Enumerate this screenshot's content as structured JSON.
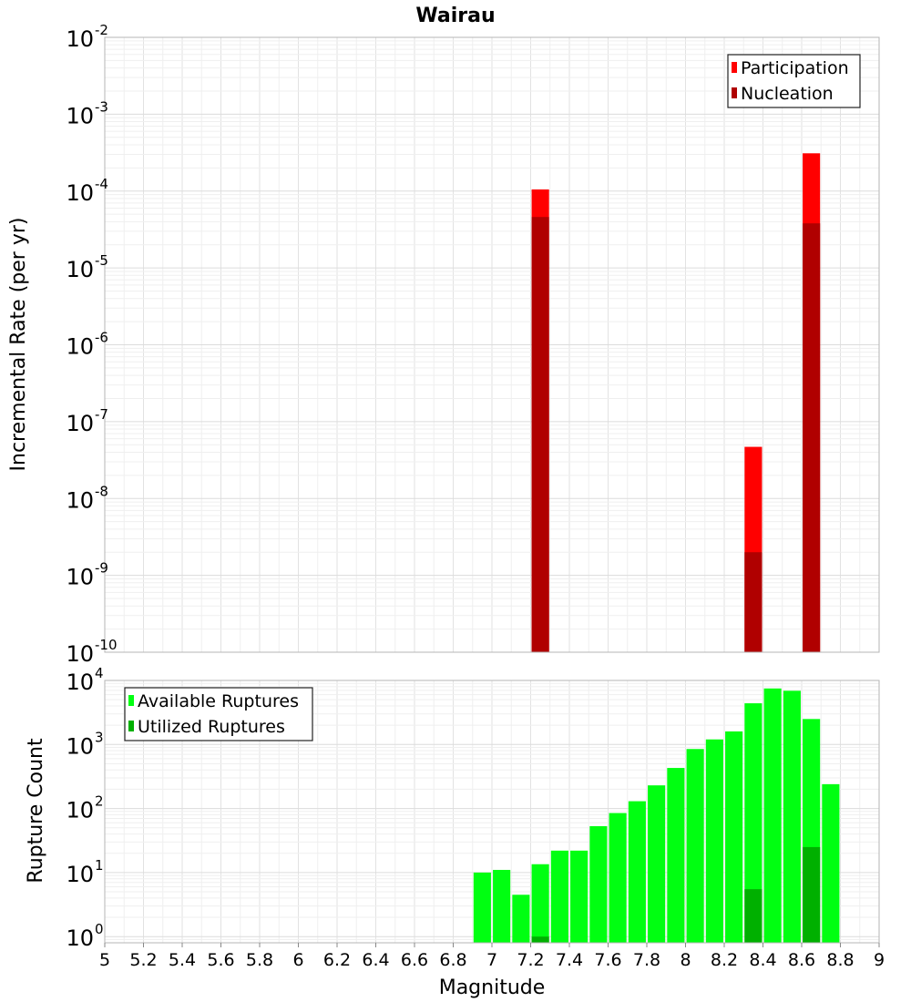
{
  "chart": {
    "title": "Wairau",
    "xlabel": "Magnitude",
    "top_ylabel": "Incremental Rate (per yr)",
    "bottom_ylabel": "Rupture Count"
  },
  "chart_data": [
    {
      "type": "bar",
      "title": "Wairau",
      "xlabel": "",
      "ylabel": "Incremental Rate (per yr)",
      "yscale": "log",
      "xlim": [
        5,
        9
      ],
      "ylim": [
        1e-10,
        0.01
      ],
      "bin_width": 0.1,
      "grid": true,
      "legend_position": "top-right",
      "series": [
        {
          "name": "Participation",
          "color": "#ff0000",
          "points": [
            {
              "x": 7.25,
              "y": 0.000105
            },
            {
              "x": 8.35,
              "y": 4.7e-08
            },
            {
              "x": 8.65,
              "y": 0.00031
            }
          ]
        },
        {
          "name": "Nucleation",
          "color": "#b00000",
          "points": [
            {
              "x": 7.25,
              "y": 4.6e-05
            },
            {
              "x": 8.35,
              "y": 2e-09
            },
            {
              "x": 8.65,
              "y": 3.8e-05
            }
          ]
        }
      ]
    },
    {
      "type": "bar",
      "xlabel": "Magnitude",
      "ylabel": "Rupture Count",
      "yscale": "log",
      "xlim": [
        5,
        9
      ],
      "ylim": [
        0.8,
        10000
      ],
      "bin_width": 0.1,
      "grid": true,
      "legend_position": "top-left",
      "series": [
        {
          "name": "Available Ruptures",
          "color": "#00ff11",
          "points": [
            {
              "x": 6.95,
              "y": 10
            },
            {
              "x": 7.05,
              "y": 11
            },
            {
              "x": 7.15,
              "y": 4.5
            },
            {
              "x": 7.25,
              "y": 13.5
            },
            {
              "x": 7.35,
              "y": 22
            },
            {
              "x": 7.45,
              "y": 22
            },
            {
              "x": 7.55,
              "y": 53
            },
            {
              "x": 7.65,
              "y": 85
            },
            {
              "x": 7.75,
              "y": 130
            },
            {
              "x": 7.85,
              "y": 230
            },
            {
              "x": 7.95,
              "y": 430
            },
            {
              "x": 8.05,
              "y": 850
            },
            {
              "x": 8.15,
              "y": 1200
            },
            {
              "x": 8.25,
              "y": 1600
            },
            {
              "x": 8.35,
              "y": 4400
            },
            {
              "x": 8.45,
              "y": 7500
            },
            {
              "x": 8.55,
              "y": 6900
            },
            {
              "x": 8.65,
              "y": 2500
            },
            {
              "x": 8.75,
              "y": 240
            }
          ]
        },
        {
          "name": "Utilized Ruptures",
          "color": "#00b000",
          "points": [
            {
              "x": 7.25,
              "y": 1
            },
            {
              "x": 8.35,
              "y": 5.5
            },
            {
              "x": 8.65,
              "y": 25
            }
          ]
        }
      ]
    }
  ]
}
